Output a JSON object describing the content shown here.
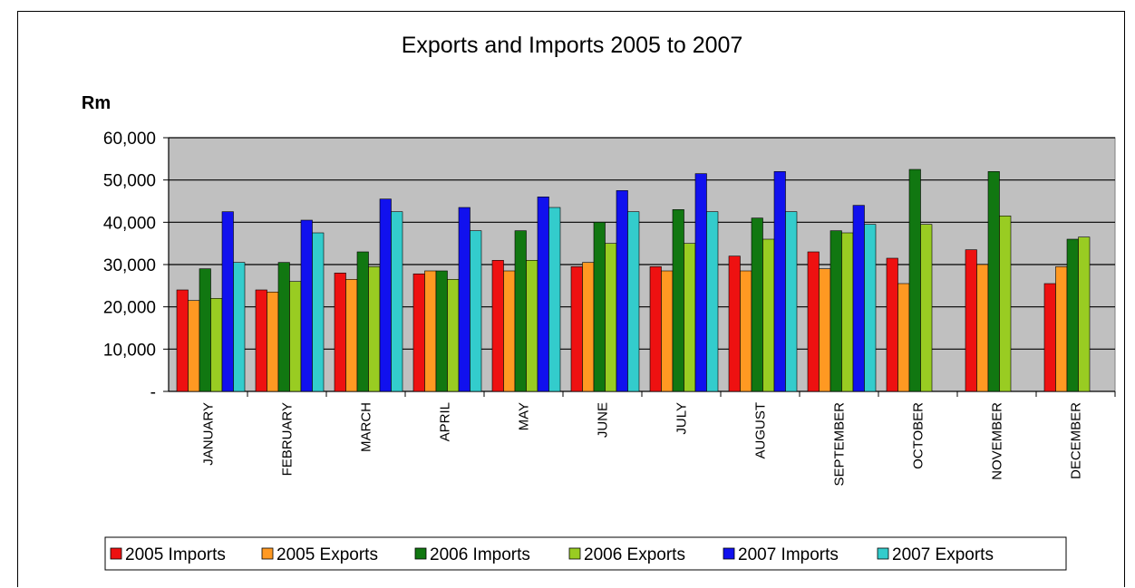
{
  "chart_data": {
    "type": "bar",
    "title": "Exports and Imports 2005 to 2007",
    "ylabel": "Rm",
    "xlabel": "",
    "ylim": [
      0,
      60000
    ],
    "y_ticks": [
      "-",
      "10,000",
      "20,000",
      "30,000",
      "40,000",
      "50,000",
      "60,000"
    ],
    "grid": true,
    "legend_position": "bottom",
    "categories": [
      "JANUARY",
      "FEBRUARY",
      "MARCH",
      "APRIL",
      "MAY",
      "JUNE",
      "JULY",
      "AUGUST",
      "SEPTEMBER",
      "OCTOBER",
      "NOVEMBER",
      "DECEMBER"
    ],
    "series": [
      {
        "name": "2005 Imports",
        "color": "#ee1111",
        "values": [
          24000,
          24000,
          28000,
          27800,
          31000,
          29500,
          29500,
          32000,
          33000,
          31500,
          33500,
          25500
        ]
      },
      {
        "name": "2005 Exports",
        "color": "#ff9922",
        "values": [
          21500,
          23500,
          26500,
          28500,
          28500,
          30500,
          28500,
          28500,
          29000,
          25500,
          30000,
          29500
        ]
      },
      {
        "name": "2006 Imports",
        "color": "#117711",
        "values": [
          29000,
          30500,
          33000,
          28500,
          38000,
          40000,
          43000,
          41000,
          38000,
          52500,
          52000,
          36000
        ]
      },
      {
        "name": "2006 Exports",
        "color": "#99cc22",
        "values": [
          22000,
          26000,
          29500,
          26500,
          31000,
          35000,
          35000,
          36000,
          37500,
          39500,
          41500,
          36500
        ]
      },
      {
        "name": "2007 Imports",
        "color": "#1111ee",
        "values": [
          42500,
          40500,
          45500,
          43500,
          46000,
          47500,
          51500,
          52000,
          44000,
          null,
          null,
          null
        ]
      },
      {
        "name": "2007 Exports",
        "color": "#33cccc",
        "values": [
          30500,
          37500,
          42500,
          38000,
          43500,
          42500,
          42500,
          42500,
          39500,
          null,
          null,
          null
        ]
      }
    ]
  }
}
